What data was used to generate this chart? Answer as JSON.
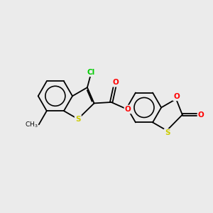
{
  "background_color": "#ebebeb",
  "bond_color": "#000000",
  "atom_colors": {
    "Cl": "#00cc00",
    "S": "#cccc00",
    "O": "#ff0000",
    "C": "#000000"
  },
  "lw": 1.3,
  "dbo": 0.055,
  "figsize": [
    3.0,
    3.0
  ],
  "dpi": 100
}
